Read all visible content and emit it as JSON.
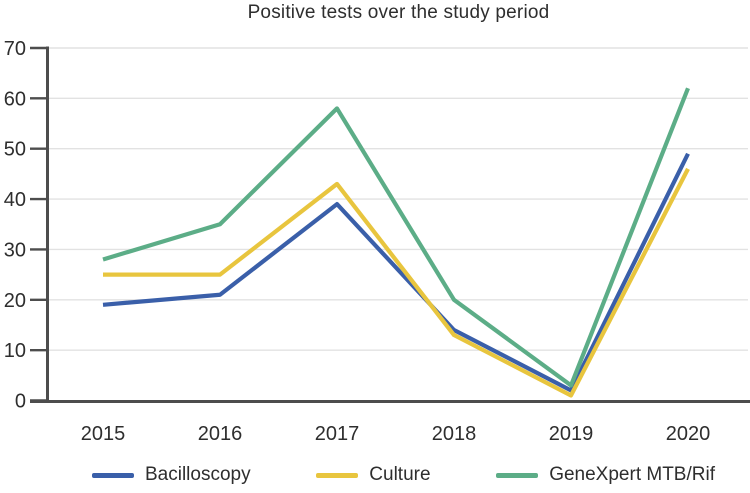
{
  "chart_data": {
    "type": "line",
    "title": "Positive tests over the study period",
    "categories": [
      "2015",
      "2016",
      "2017",
      "2018",
      "2019",
      "2020"
    ],
    "series": [
      {
        "name": "Bacilloscopy",
        "color": "#3a5fa9",
        "values": [
          19,
          21,
          39,
          14,
          2,
          49
        ]
      },
      {
        "name": "Culture",
        "color": "#e8c53e",
        "values": [
          25,
          25,
          43,
          13,
          1,
          46
        ]
      },
      {
        "name": "GeneXpert MTB/Rif",
        "color": "#5cad87",
        "values": [
          28,
          35,
          58,
          20,
          3,
          62
        ]
      }
    ],
    "ylim": [
      0,
      70
    ],
    "ytick_step": 10,
    "grid": true,
    "legend_position": "bottom",
    "colors": {
      "axis": "#4d4d4d",
      "grid": "#e2e2e2",
      "text": "#2e2e2e",
      "background": "#ffffff"
    }
  }
}
